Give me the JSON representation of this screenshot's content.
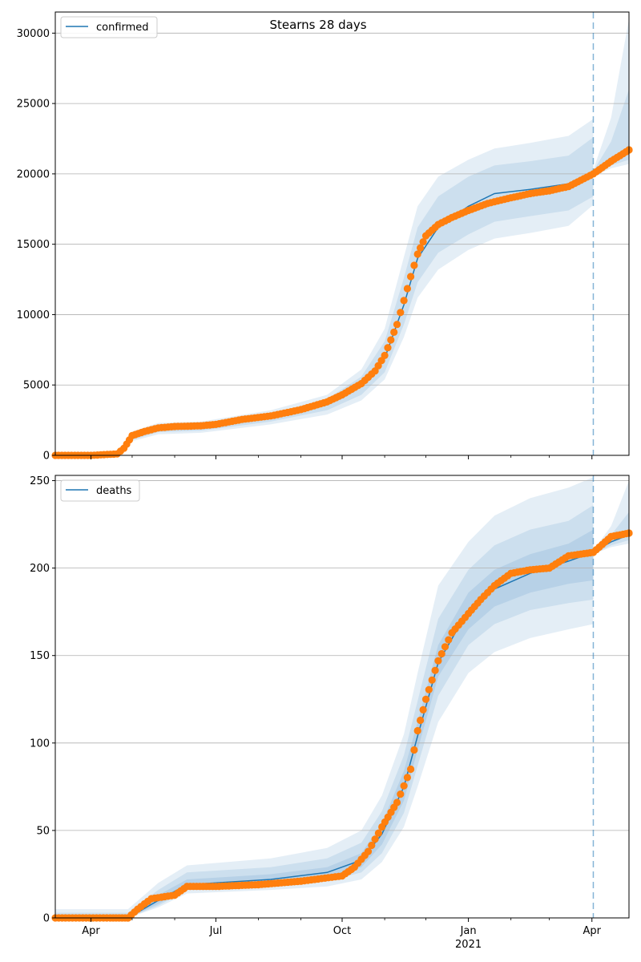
{
  "figure_title": "Stearns 28 days",
  "x_ticks": [
    {
      "label": "Apr",
      "date": "2020-04-01"
    },
    {
      "label": "Jul",
      "date": "2020-07-01"
    },
    {
      "label": "Oct",
      "date": "2020-10-01"
    },
    {
      "label": "Jan",
      "date": "2021-01-01"
    },
    {
      "label": "Apr",
      "date": "2021-04-01"
    }
  ],
  "x_year_label": "2021",
  "colors": {
    "model_line": "#1f77b4",
    "observed": "#ff7f0e",
    "band": "#1f77b4",
    "grid": "#b0b0b0",
    "forecast_start_line": "#1f77b4"
  },
  "chart_data": [
    {
      "type": "line",
      "legend": "confirmed",
      "legend_position": "top-left",
      "grid": "horizontal",
      "xlim": [
        "2020-03-06",
        "2021-04-28"
      ],
      "ylim": [
        0,
        31500
      ],
      "y_ticks": [
        0,
        5000,
        10000,
        15000,
        20000,
        25000,
        30000
      ],
      "forecast_start": "2021-04-02",
      "observed": {
        "x": [
          "2020-03-06",
          "2020-04-01",
          "2020-04-20",
          "2020-04-25",
          "2020-05-01",
          "2020-05-10",
          "2020-05-20",
          "2020-06-01",
          "2020-06-20",
          "2020-07-01",
          "2020-07-20",
          "2020-08-10",
          "2020-09-01",
          "2020-09-20",
          "2020-10-01",
          "2020-10-15",
          "2020-10-25",
          "2020-11-01",
          "2020-11-10",
          "2020-11-15",
          "2020-11-20",
          "2020-11-25",
          "2020-12-01",
          "2020-12-10",
          "2020-12-20",
          "2021-01-01",
          "2021-01-15",
          "2021-02-01",
          "2021-02-15",
          "2021-03-01",
          "2021-03-15",
          "2021-04-02",
          "2021-04-15",
          "2021-04-28"
        ],
        "y": [
          0,
          0,
          100,
          500,
          1400,
          1700,
          1950,
          2050,
          2100,
          2200,
          2550,
          2800,
          3250,
          3800,
          4300,
          5100,
          6000,
          7100,
          9300,
          11000,
          12700,
          14300,
          15600,
          16400,
          16900,
          17400,
          17900,
          18300,
          18600,
          18800,
          19100,
          20000,
          20900,
          21700
        ]
      },
      "model": {
        "x": [
          "2020-03-06",
          "2020-04-20",
          "2020-05-01",
          "2020-05-20",
          "2020-06-20",
          "2020-08-10",
          "2020-09-20",
          "2020-10-15",
          "2020-11-01",
          "2020-11-15",
          "2020-11-25",
          "2020-12-10",
          "2021-01-01",
          "2021-01-20",
          "2021-02-15",
          "2021-03-15",
          "2021-04-02",
          "2021-04-15",
          "2021-04-28"
        ],
        "y": [
          0,
          100,
          1300,
          1800,
          1950,
          2650,
          3600,
          4900,
          6900,
          10700,
          14000,
          16200,
          17700,
          18600,
          18900,
          19300,
          20100,
          20800,
          21600
        ]
      },
      "bands": [
        {
          "x": [
            "2020-03-06",
            "2020-04-20",
            "2020-05-01",
            "2020-05-20",
            "2020-06-20",
            "2020-08-10",
            "2020-09-20",
            "2020-10-15",
            "2020-11-01",
            "2020-11-15",
            "2020-11-25",
            "2020-12-10",
            "2021-01-01",
            "2021-01-20",
            "2021-02-15",
            "2021-03-15",
            "2021-04-02"
          ],
          "lower": [
            0,
            80,
            1000,
            1500,
            1600,
            2200,
            2900,
            3900,
            5400,
            8400,
            11200,
            13200,
            14600,
            15400,
            15800,
            16300,
            17800
          ],
          "upper": [
            0,
            150,
            1700,
            2300,
            2400,
            3200,
            4300,
            6100,
            9000,
            14100,
            17700,
            19800,
            21000,
            21800,
            22200,
            22700,
            23900
          ]
        },
        {
          "x": [
            "2020-03-06",
            "2020-04-20",
            "2020-05-01",
            "2020-05-20",
            "2020-06-20",
            "2020-08-10",
            "2020-09-20",
            "2020-10-15",
            "2020-11-01",
            "2020-11-15",
            "2020-11-25",
            "2020-12-10",
            "2021-01-01",
            "2021-01-20",
            "2021-02-15",
            "2021-03-15",
            "2021-04-02"
          ],
          "lower": [
            0,
            90,
            1100,
            1650,
            1750,
            2400,
            3200,
            4300,
            5900,
            9300,
            12300,
            14400,
            15700,
            16600,
            17000,
            17400,
            18400
          ],
          "upper": [
            0,
            130,
            1550,
            2050,
            2150,
            2950,
            4000,
            5600,
            8100,
            12600,
            16200,
            18400,
            19800,
            20600,
            20900,
            21300,
            22600
          ]
        },
        {
          "x": [
            "2021-04-02",
            "2021-04-15",
            "2021-04-28"
          ],
          "lower": [
            19800,
            20400,
            20700
          ],
          "upper": [
            20300,
            24000,
            31000
          ]
        },
        {
          "x": [
            "2021-04-02",
            "2021-04-15",
            "2021-04-28"
          ],
          "lower": [
            19900,
            20600,
            21000
          ],
          "upper": [
            20200,
            22300,
            26000
          ]
        }
      ]
    },
    {
      "type": "line",
      "legend": "deaths",
      "legend_position": "top-left",
      "grid": "horizontal",
      "xlim": [
        "2020-03-06",
        "2021-04-28"
      ],
      "ylim": [
        0,
        253
      ],
      "y_ticks": [
        0,
        50,
        100,
        150,
        200,
        250
      ],
      "forecast_start": "2021-04-02",
      "observed": {
        "x": [
          "2020-03-06",
          "2020-04-15",
          "2020-04-28",
          "2020-05-05",
          "2020-05-15",
          "2020-06-01",
          "2020-06-10",
          "2020-07-01",
          "2020-08-01",
          "2020-09-01",
          "2020-10-01",
          "2020-10-10",
          "2020-10-20",
          "2020-10-30",
          "2020-11-10",
          "2020-11-20",
          "2020-11-25",
          "2020-12-01",
          "2020-12-10",
          "2020-12-20",
          "2021-01-01",
          "2021-01-10",
          "2021-01-20",
          "2021-02-01",
          "2021-02-15",
          "2021-03-01",
          "2021-03-15",
          "2021-04-02",
          "2021-04-15",
          "2021-04-28"
        ],
        "y": [
          0,
          0,
          0,
          5,
          11,
          13,
          18,
          18,
          19,
          21,
          24,
          29,
          38,
          52,
          66,
          85,
          107,
          125,
          147,
          163,
          174,
          182,
          190,
          197,
          199,
          200,
          207,
          209,
          218,
          220
        ]
      },
      "model": {
        "x": [
          "2020-03-06",
          "2020-04-28",
          "2020-05-20",
          "2020-06-10",
          "2020-08-10",
          "2020-09-20",
          "2020-10-15",
          "2020-10-30",
          "2020-11-15",
          "2020-11-25",
          "2020-12-10",
          "2021-01-01",
          "2021-01-20",
          "2021-02-15",
          "2021-03-15",
          "2021-04-02",
          "2021-04-15",
          "2021-04-28"
        ],
        "y": [
          0,
          0,
          10,
          19,
          22,
          26,
          33,
          48,
          75,
          104,
          146,
          176,
          188,
          197,
          204,
          209,
          215,
          219
        ]
      },
      "bands": [
        {
          "x": [
            "2020-03-06",
            "2020-04-28",
            "2020-05-20",
            "2020-06-10",
            "2020-08-10",
            "2020-09-20",
            "2020-10-15",
            "2020-10-30",
            "2020-11-15",
            "2020-11-25",
            "2020-12-10",
            "2021-01-01",
            "2021-01-20",
            "2021-02-15",
            "2021-03-15",
            "2021-04-02"
          ],
          "lower": [
            0,
            0,
            6,
            14,
            16,
            18,
            22,
            32,
            52,
            75,
            112,
            140,
            152,
            160,
            165,
            168
          ],
          "upper": [
            5,
            5,
            20,
            30,
            34,
            40,
            50,
            70,
            105,
            140,
            190,
            215,
            230,
            240,
            246,
            252
          ]
        },
        {
          "x": [
            "2020-03-06",
            "2020-04-28",
            "2020-05-20",
            "2020-06-10",
            "2020-08-10",
            "2020-09-20",
            "2020-10-15",
            "2020-10-30",
            "2020-11-15",
            "2020-11-25",
            "2020-12-10",
            "2021-01-01",
            "2021-01-20",
            "2021-02-15",
            "2021-03-15",
            "2021-04-02"
          ],
          "lower": [
            0,
            0,
            7,
            16,
            18,
            21,
            26,
            37,
            60,
            87,
            127,
            156,
            168,
            176,
            180,
            182
          ],
          "upper": [
            3,
            3,
            16,
            26,
            29,
            34,
            43,
            61,
            93,
            124,
            171,
            199,
            213,
            222,
            227,
            236
          ]
        },
        {
          "x": [
            "2020-03-06",
            "2020-04-28",
            "2020-05-20",
            "2020-06-10",
            "2020-08-10",
            "2020-09-20",
            "2020-10-15",
            "2020-10-30",
            "2020-11-15",
            "2020-11-25",
            "2020-12-10",
            "2021-01-01",
            "2021-01-20",
            "2021-02-15",
            "2021-03-15",
            "2021-04-02"
          ],
          "lower": [
            0,
            0,
            8,
            17,
            20,
            23,
            29,
            42,
            67,
            96,
            138,
            165,
            178,
            186,
            191,
            193
          ],
          "upper": [
            2,
            2,
            13,
            22,
            25,
            29,
            37,
            54,
            84,
            112,
            156,
            186,
            199,
            208,
            214,
            222
          ]
        },
        {
          "x": [
            "2021-04-02",
            "2021-04-15",
            "2021-04-28"
          ],
          "lower": [
            208,
            212,
            214
          ],
          "upper": [
            210,
            224,
            250
          ]
        },
        {
          "x": [
            "2021-04-02",
            "2021-04-15",
            "2021-04-28"
          ],
          "lower": [
            208,
            213,
            216
          ],
          "upper": [
            210,
            219,
            232
          ]
        }
      ]
    }
  ]
}
